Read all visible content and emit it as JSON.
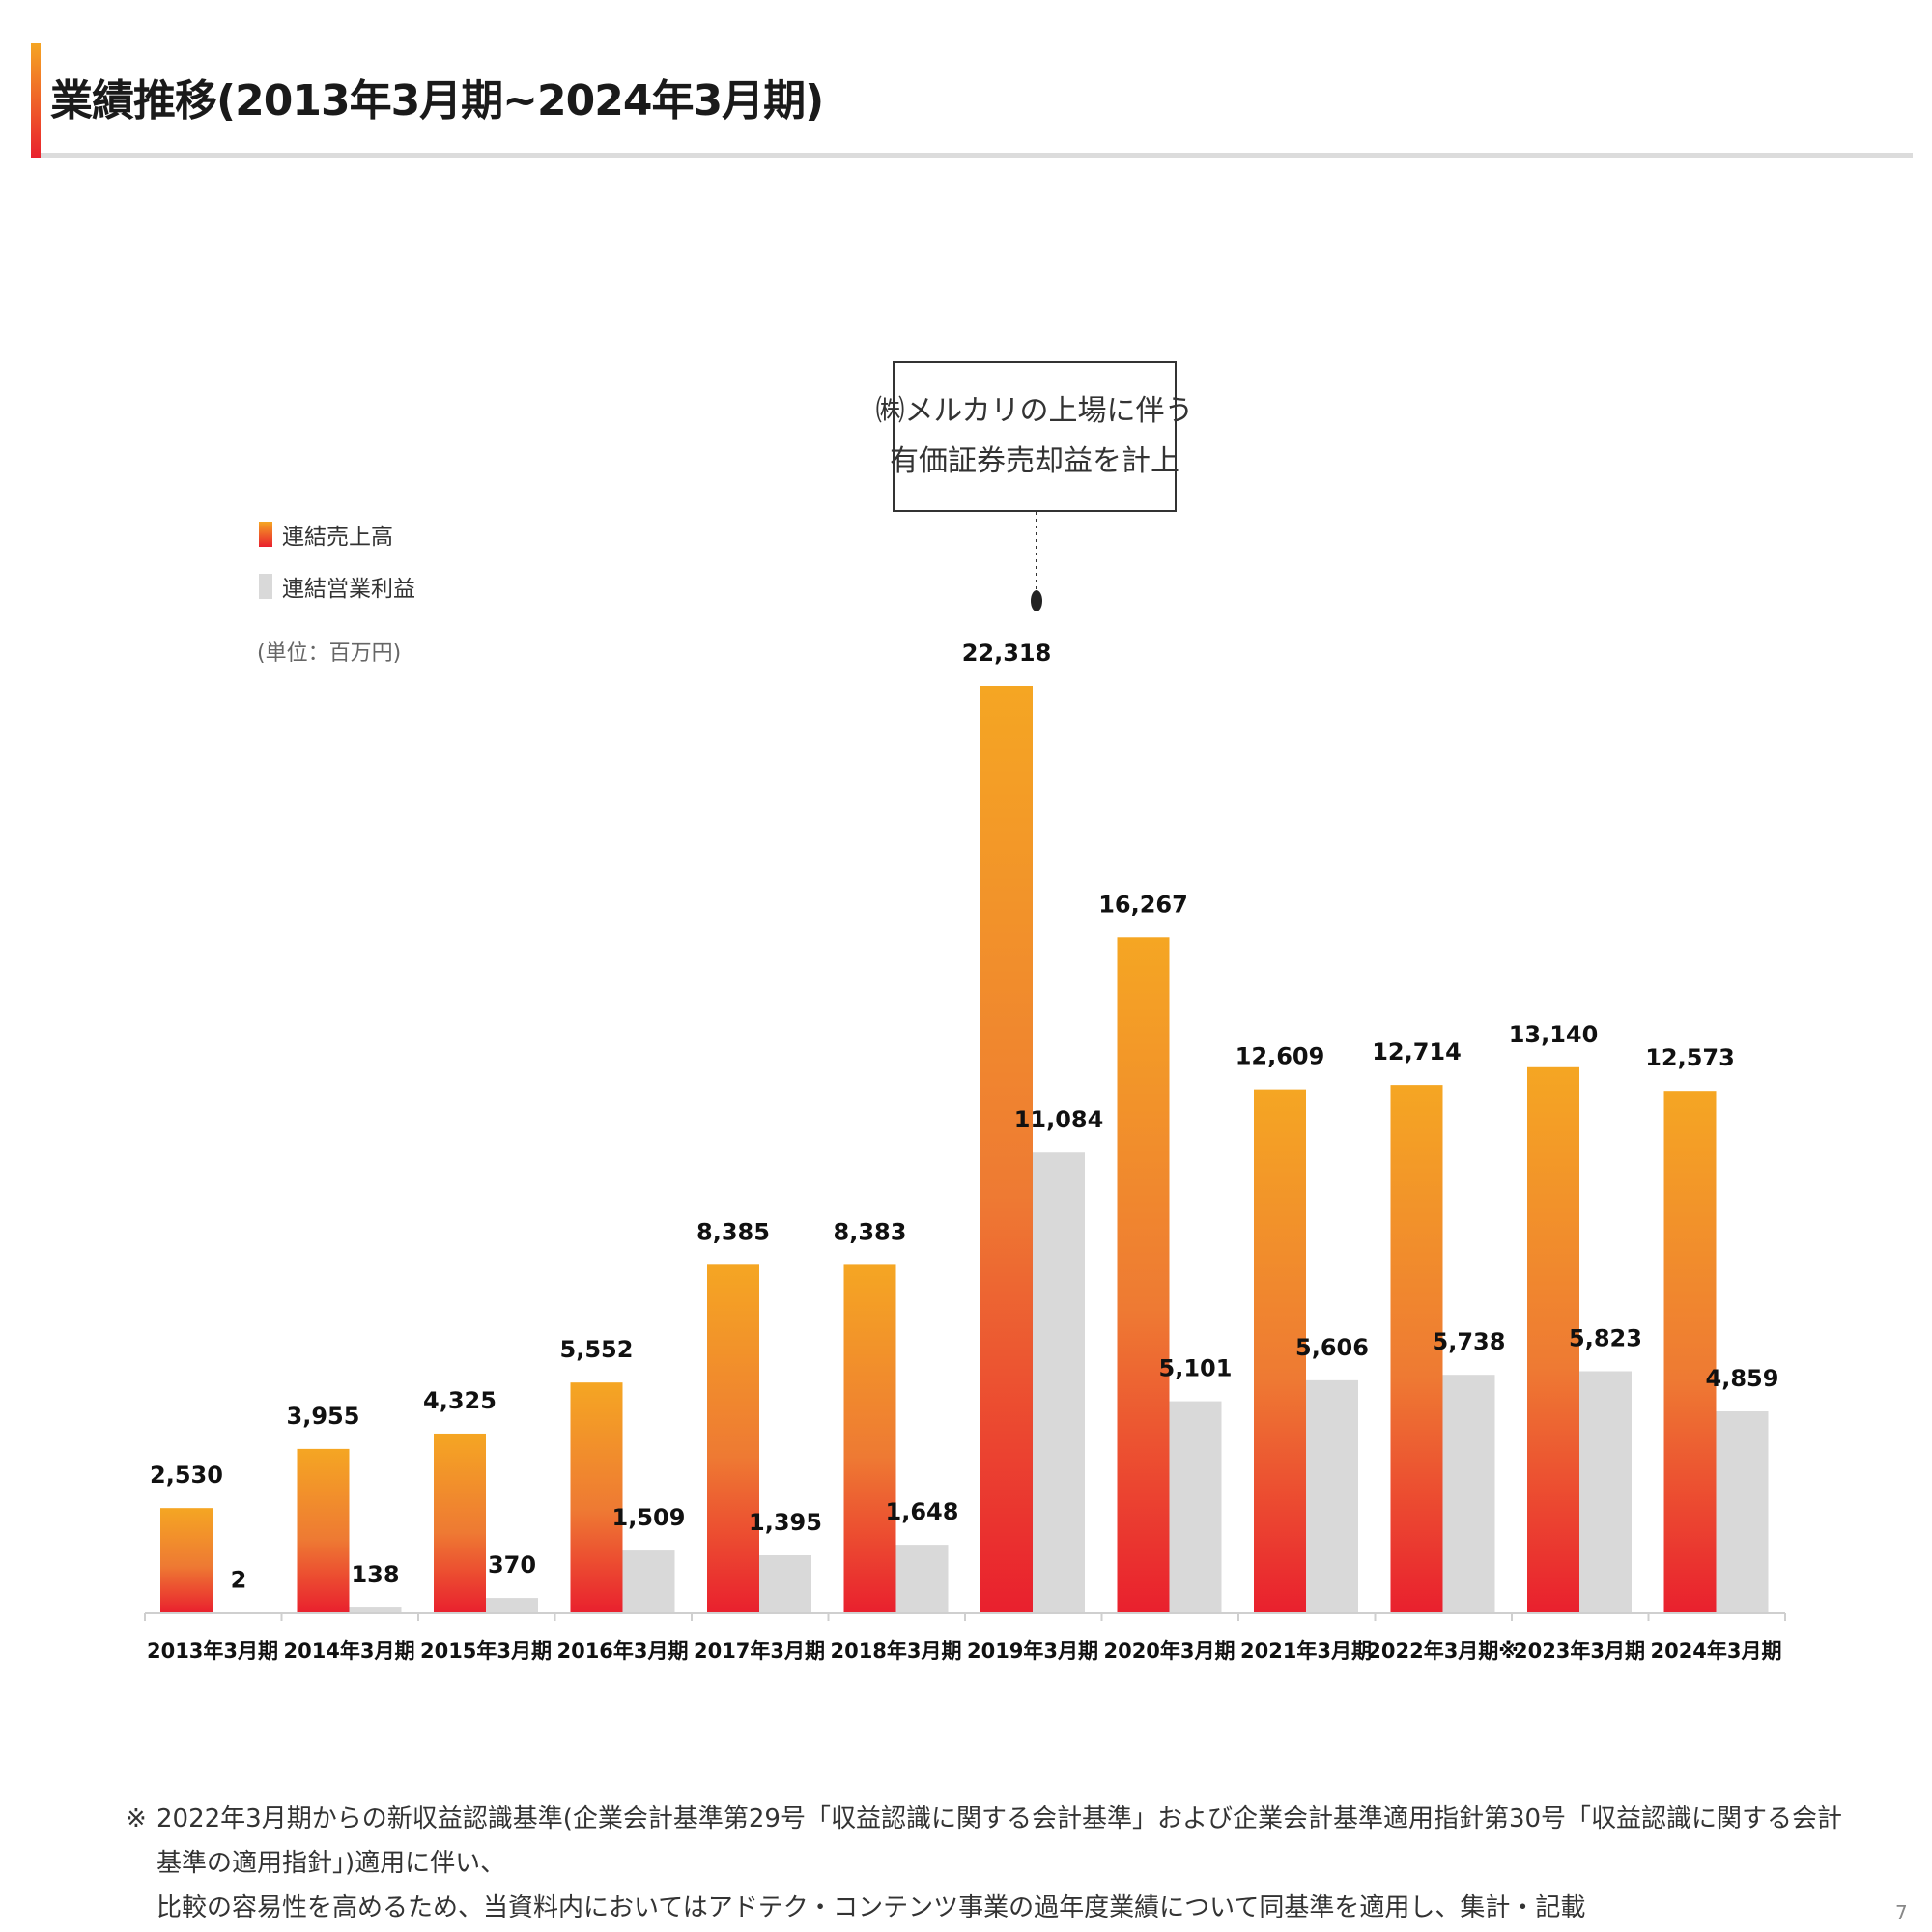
{
  "title": "業績推移(2013年3月期~2024年3月期)",
  "callout": {
    "line1": "㈱メルカリの上場に伴う",
    "line2": "有価証券売却益を計上"
  },
  "legend": {
    "sales_label": "連結売上高",
    "profit_label": "連結営業利益"
  },
  "unit_label": "(単位：百万円)",
  "colors": {
    "sales_top": "#f5a623",
    "sales_bottom": "#e9202e",
    "profit": "#d9d9d9",
    "title_rule": "#dcdcdc"
  },
  "chart_data": {
    "type": "bar",
    "categories": [
      "2013年3月期",
      "2014年3月期",
      "2015年3月期",
      "2016年3月期",
      "2017年3月期",
      "2018年3月期",
      "2019年3月期",
      "2020年3月期",
      "2021年3月期",
      "2022年3月期※",
      "2023年3月期",
      "2024年3月期"
    ],
    "series": [
      {
        "name": "連結売上高",
        "values": [
          2530,
          3955,
          4325,
          5552,
          8385,
          8383,
          22318,
          16267,
          12609,
          12714,
          13140,
          12573
        ],
        "labels": [
          "2,530",
          "3,955",
          "4,325",
          "5,552",
          "8,385",
          "8,383",
          "22,318",
          "16,267",
          "12,609",
          "12,714",
          "13,140",
          "12,573"
        ]
      },
      {
        "name": "連結営業利益",
        "values": [
          2,
          138,
          370,
          1509,
          1395,
          1648,
          11084,
          5101,
          5606,
          5738,
          5823,
          4859
        ],
        "labels": [
          "2",
          "138",
          "370",
          "1,509",
          "1,395",
          "1,648",
          "11,084",
          "5,101",
          "5,606",
          "5,738",
          "5,823",
          "4,859"
        ]
      }
    ],
    "ylim": [
      0,
      22318
    ],
    "grid": false,
    "legend_position": "top-left"
  },
  "footnote": {
    "mark": "※",
    "line1": "2022年3月期からの新収益認識基準(企業会計基準第29号「収益認識に関する会計基準」および企業会計基準適用指針第30号「収益認識に関する会計基準の適用指針」)適用に伴い、",
    "line2": "比較の容易性を高めるため、当資料内においてはアドテク・コンテンツ事業の過年度業績について同基準を適用し、集計・記載"
  },
  "page_number": "7"
}
